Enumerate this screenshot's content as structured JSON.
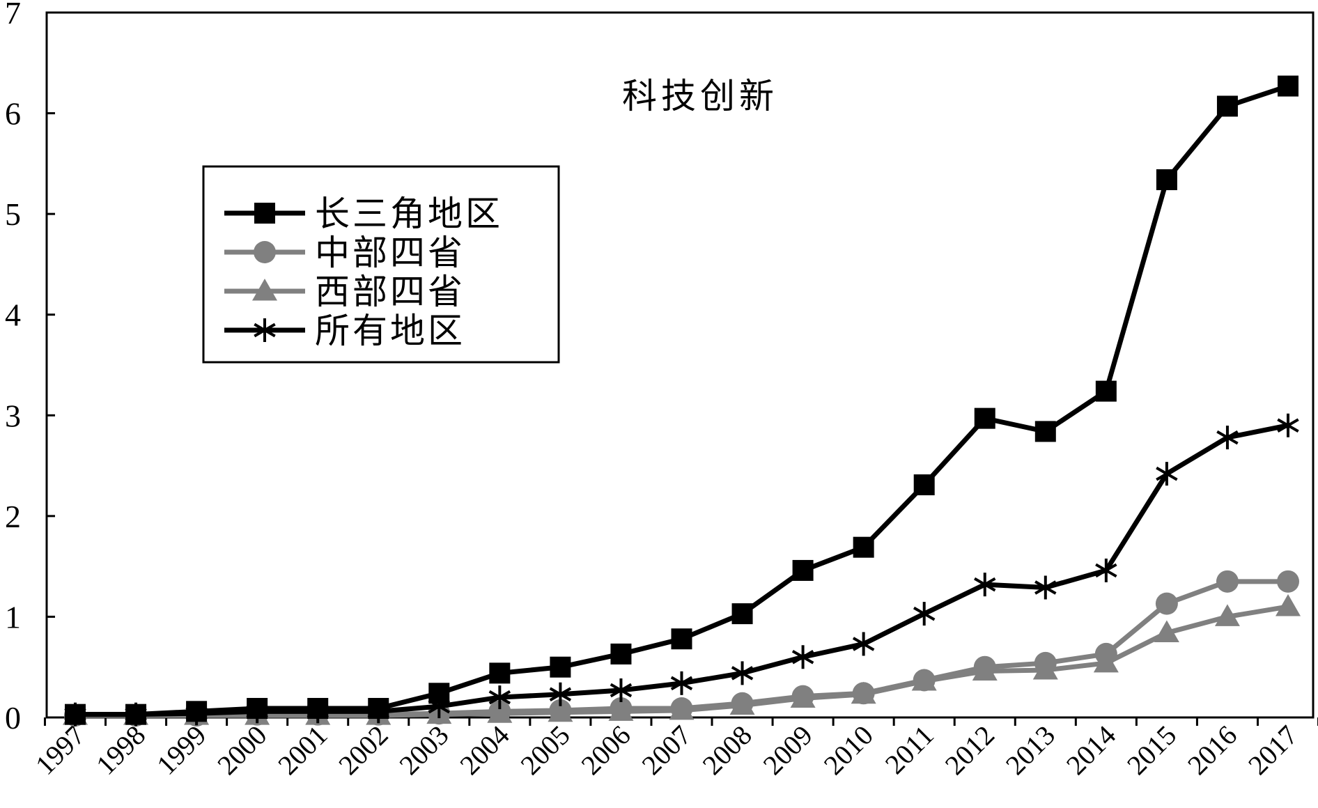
{
  "chart_data": {
    "type": "line",
    "title": "科技创新",
    "xlabel": "",
    "ylabel": "",
    "ylim": [
      0,
      7
    ],
    "yticks": [
      "0",
      "1",
      "2",
      "3",
      "4",
      "5",
      "6",
      "7"
    ],
    "categories": [
      "1997",
      "1998",
      "1999",
      "2000",
      "2001",
      "2002",
      "2003",
      "2004",
      "2005",
      "2006",
      "2007",
      "2008",
      "2009",
      "2010",
      "2011",
      "2012",
      "2013",
      "2014",
      "2015",
      "2016",
      "2017"
    ],
    "legend_position": "upper-left",
    "grid": false,
    "series": [
      {
        "name": "长三角地区",
        "color": "#000000",
        "marker": "square",
        "values": [
          0.03,
          0.03,
          0.06,
          0.09,
          0.09,
          0.09,
          0.24,
          0.44,
          0.5,
          0.63,
          0.78,
          1.03,
          1.46,
          1.69,
          2.31,
          2.97,
          2.84,
          3.24,
          5.34,
          6.07,
          6.27
        ]
      },
      {
        "name": "中部四省",
        "color": "#808080",
        "marker": "circle",
        "values": [
          0.02,
          0.02,
          0.02,
          0.03,
          0.03,
          0.03,
          0.04,
          0.06,
          0.07,
          0.09,
          0.09,
          0.14,
          0.21,
          0.24,
          0.37,
          0.5,
          0.54,
          0.63,
          1.13,
          1.35,
          1.35
        ]
      },
      {
        "name": "西部四省",
        "color": "#808080",
        "marker": "triangle",
        "values": [
          0.02,
          0.02,
          0.02,
          0.02,
          0.02,
          0.02,
          0.03,
          0.04,
          0.05,
          0.06,
          0.07,
          0.12,
          0.19,
          0.23,
          0.36,
          0.46,
          0.47,
          0.54,
          0.84,
          1.0,
          1.1
        ]
      },
      {
        "name": "所有地区",
        "color": "#000000",
        "marker": "asterisk",
        "values": [
          0.03,
          0.03,
          0.04,
          0.06,
          0.06,
          0.06,
          0.11,
          0.2,
          0.23,
          0.27,
          0.34,
          0.44,
          0.6,
          0.73,
          1.03,
          1.32,
          1.29,
          1.46,
          2.42,
          2.78,
          2.9
        ]
      }
    ]
  }
}
